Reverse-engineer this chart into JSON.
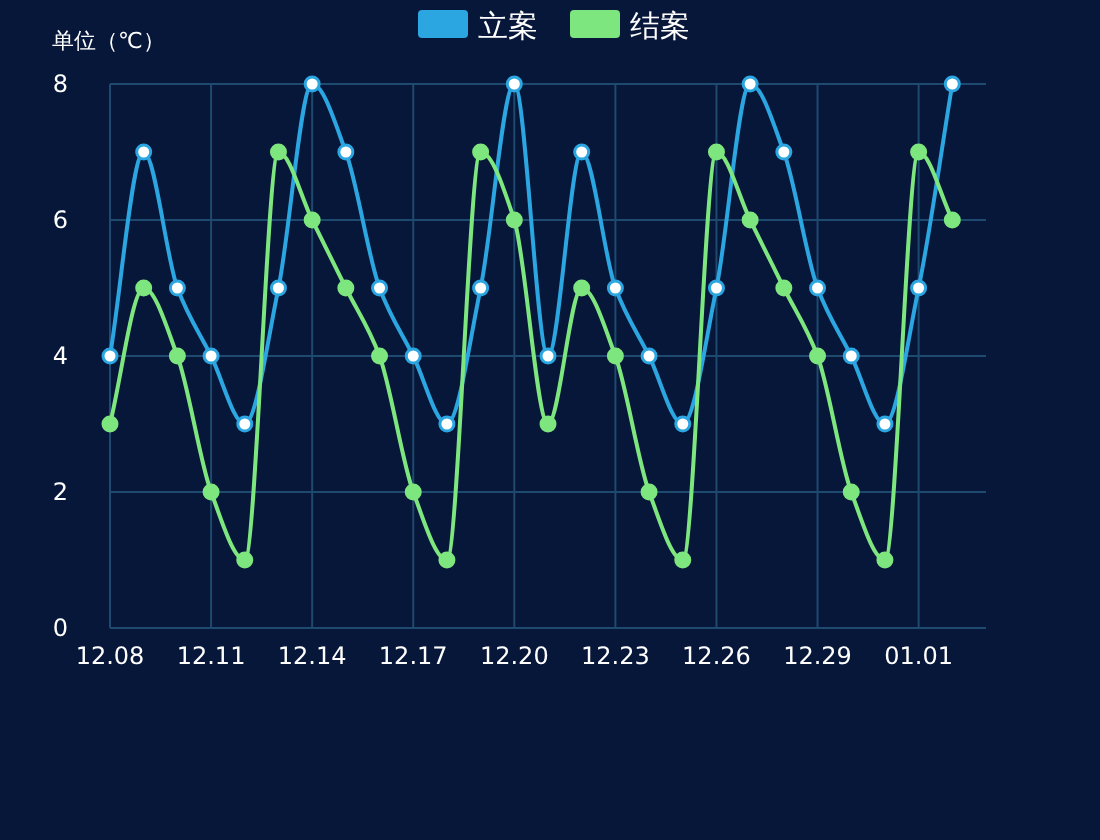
{
  "chart_data": {
    "type": "line",
    "ylabel": "单位（℃）",
    "categories": [
      "12.08",
      null,
      null,
      "12.11",
      null,
      null,
      "12.14",
      null,
      null,
      "12.17",
      null,
      null,
      "12.20",
      null,
      null,
      "12.23",
      null,
      null,
      "12.26",
      null,
      null,
      "12.29",
      null,
      null,
      "01.01",
      null,
      null
    ],
    "series": [
      {
        "name": "立案",
        "color": "#2ba6e1",
        "values": [
          4,
          7,
          5,
          4,
          3,
          5,
          8,
          7,
          5,
          4,
          3,
          5,
          8,
          4,
          7,
          5,
          4,
          3,
          5,
          8,
          7,
          5,
          4,
          3,
          5,
          8,
          null
        ]
      },
      {
        "name": "结案",
        "color": "#7ee67e",
        "values": [
          3,
          5,
          4,
          2,
          1,
          7,
          6,
          5,
          4,
          2,
          1,
          7,
          6,
          3,
          5,
          4,
          2,
          1,
          7,
          6,
          5,
          4,
          2,
          1,
          7,
          6,
          null
        ]
      }
    ],
    "ylim": [
      0,
      8
    ],
    "yticks": [
      0,
      2,
      4,
      6,
      8
    ],
    "grid": true,
    "legend": "top",
    "marker": "circle",
    "line_style": "solid"
  }
}
